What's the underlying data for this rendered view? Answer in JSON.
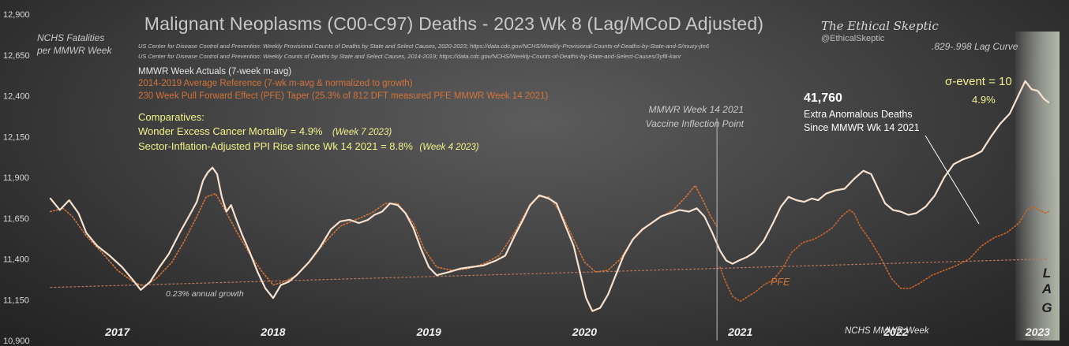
{
  "chart_data": {
    "type": "line",
    "title": "Malignant Neoplasms (C00-C97) Deaths - 2023 Wk 8 (Lag/MCoD Adjusted)",
    "ylabel": [
      "NCHS Fatalities",
      "per MMWR Week"
    ],
    "xlabel": "NCHS MMWR Week",
    "ylim": [
      10900,
      12900
    ],
    "yticks": [
      12900,
      12650,
      12400,
      12150,
      11900,
      11650,
      11400,
      11150,
      10900
    ],
    "ytick_labels": [
      "12,900",
      "12,650",
      "12,400",
      "12,150",
      "11,900",
      "11,650",
      "11,400",
      "11,150",
      "10,900"
    ],
    "xlim": [
      2016.7,
      2023.2
    ],
    "x_categories": [
      {
        "label": "2017",
        "x": 2017.15
      },
      {
        "label": "2018",
        "x": 2018.15
      },
      {
        "label": "2019",
        "x": 2019.15
      },
      {
        "label": "2020",
        "x": 2020.15
      },
      {
        "label": "2021",
        "x": 2021.15
      },
      {
        "label": "2022",
        "x": 2022.15
      },
      {
        "label": "2023",
        "x": 2023.06
      }
    ],
    "grid": false,
    "series": [
      {
        "name": "MMWR Week Actuals (7-week m-avg)",
        "color": "#f7e1cf",
        "style": "solid",
        "points": [
          [
            2016.72,
            11770
          ],
          [
            2016.78,
            11700
          ],
          [
            2016.84,
            11760
          ],
          [
            2016.9,
            11680
          ],
          [
            2016.95,
            11560
          ],
          [
            2017.02,
            11480
          ],
          [
            2017.1,
            11420
          ],
          [
            2017.18,
            11350
          ],
          [
            2017.25,
            11270
          ],
          [
            2017.3,
            11210
          ],
          [
            2017.36,
            11260
          ],
          [
            2017.42,
            11350
          ],
          [
            2017.48,
            11430
          ],
          [
            2017.55,
            11560
          ],
          [
            2017.62,
            11680
          ],
          [
            2017.66,
            11750
          ],
          [
            2017.7,
            11880
          ],
          [
            2017.73,
            11930
          ],
          [
            2017.76,
            11960
          ],
          [
            2017.79,
            11920
          ],
          [
            2017.82,
            11780
          ],
          [
            2017.85,
            11690
          ],
          [
            2017.88,
            11730
          ],
          [
            2017.91,
            11650
          ],
          [
            2017.95,
            11550
          ],
          [
            2018.0,
            11440
          ],
          [
            2018.05,
            11320
          ],
          [
            2018.1,
            11220
          ],
          [
            2018.15,
            11160
          ],
          [
            2018.2,
            11240
          ],
          [
            2018.25,
            11260
          ],
          [
            2018.3,
            11300
          ],
          [
            2018.38,
            11380
          ],
          [
            2018.45,
            11470
          ],
          [
            2018.52,
            11580
          ],
          [
            2018.58,
            11630
          ],
          [
            2018.64,
            11640
          ],
          [
            2018.7,
            11620
          ],
          [
            2018.76,
            11640
          ],
          [
            2018.8,
            11670
          ],
          [
            2018.85,
            11690
          ],
          [
            2018.9,
            11740
          ],
          [
            2018.95,
            11730
          ],
          [
            2019.0,
            11680
          ],
          [
            2019.05,
            11590
          ],
          [
            2019.1,
            11460
          ],
          [
            2019.15,
            11350
          ],
          [
            2019.2,
            11300
          ],
          [
            2019.28,
            11320
          ],
          [
            2019.35,
            11340
          ],
          [
            2019.42,
            11350
          ],
          [
            2019.5,
            11360
          ],
          [
            2019.58,
            11390
          ],
          [
            2019.64,
            11420
          ],
          [
            2019.7,
            11540
          ],
          [
            2019.76,
            11650
          ],
          [
            2019.8,
            11730
          ],
          [
            2019.86,
            11790
          ],
          [
            2019.92,
            11770
          ],
          [
            2019.97,
            11740
          ],
          [
            2020.02,
            11620
          ],
          [
            2020.08,
            11480
          ],
          [
            2020.12,
            11320
          ],
          [
            2020.16,
            11160
          ],
          [
            2020.2,
            11080
          ],
          [
            2020.25,
            11100
          ],
          [
            2020.3,
            11180
          ],
          [
            2020.35,
            11300
          ],
          [
            2020.4,
            11420
          ],
          [
            2020.46,
            11520
          ],
          [
            2020.52,
            11580
          ],
          [
            2020.58,
            11620
          ],
          [
            2020.64,
            11660
          ],
          [
            2020.7,
            11680
          ],
          [
            2020.76,
            11700
          ],
          [
            2020.82,
            11690
          ],
          [
            2020.87,
            11710
          ],
          [
            2020.92,
            11660
          ],
          [
            2020.97,
            11560
          ],
          [
            2021.02,
            11450
          ],
          [
            2021.06,
            11390
          ],
          [
            2021.1,
            11370
          ],
          [
            2021.14,
            11390
          ],
          [
            2021.19,
            11410
          ],
          [
            2021.24,
            11440
          ],
          [
            2021.3,
            11510
          ],
          [
            2021.36,
            11620
          ],
          [
            2021.41,
            11720
          ],
          [
            2021.46,
            11780
          ],
          [
            2021.51,
            11760
          ],
          [
            2021.56,
            11750
          ],
          [
            2021.61,
            11770
          ],
          [
            2021.65,
            11760
          ],
          [
            2021.7,
            11800
          ],
          [
            2021.76,
            11820
          ],
          [
            2021.82,
            11830
          ],
          [
            2021.88,
            11890
          ],
          [
            2021.94,
            11940
          ],
          [
            2021.99,
            11920
          ],
          [
            2022.04,
            11820
          ],
          [
            2022.08,
            11740
          ],
          [
            2022.13,
            11700
          ],
          [
            2022.18,
            11690
          ],
          [
            2022.23,
            11670
          ],
          [
            2022.28,
            11680
          ],
          [
            2022.34,
            11720
          ],
          [
            2022.4,
            11790
          ],
          [
            2022.46,
            11900
          ],
          [
            2022.52,
            11980
          ],
          [
            2022.58,
            12010
          ],
          [
            2022.64,
            12030
          ],
          [
            2022.7,
            12060
          ],
          [
            2022.76,
            12150
          ],
          [
            2022.82,
            12230
          ],
          [
            2022.88,
            12290
          ],
          [
            2022.94,
            12410
          ],
          [
            2022.98,
            12490
          ],
          [
            2023.02,
            12440
          ],
          [
            2023.06,
            12430
          ],
          [
            2023.1,
            12380
          ],
          [
            2023.13,
            12360
          ]
        ]
      },
      {
        "name": "2014-2019 Average Reference (7-wk m-avg & normalized to growth)",
        "color": "#d4733a",
        "style": "dotted",
        "points": [
          [
            2016.72,
            11690
          ],
          [
            2016.8,
            11710
          ],
          [
            2016.86,
            11660
          ],
          [
            2016.95,
            11540
          ],
          [
            2017.05,
            11440
          ],
          [
            2017.15,
            11330
          ],
          [
            2017.25,
            11260
          ],
          [
            2017.32,
            11230
          ],
          [
            2017.4,
            11280
          ],
          [
            2017.5,
            11380
          ],
          [
            2017.58,
            11510
          ],
          [
            2017.66,
            11660
          ],
          [
            2017.72,
            11780
          ],
          [
            2017.78,
            11800
          ],
          [
            2017.84,
            11700
          ],
          [
            2017.92,
            11560
          ],
          [
            2018.0,
            11430
          ],
          [
            2018.08,
            11320
          ],
          [
            2018.15,
            11240
          ],
          [
            2018.22,
            11260
          ],
          [
            2018.3,
            11300
          ],
          [
            2018.4,
            11400
          ],
          [
            2018.48,
            11500
          ],
          [
            2018.58,
            11600
          ],
          [
            2018.68,
            11640
          ],
          [
            2018.78,
            11680
          ],
          [
            2018.87,
            11740
          ],
          [
            2018.95,
            11740
          ],
          [
            2019.05,
            11620
          ],
          [
            2019.12,
            11460
          ],
          [
            2019.2,
            11350
          ],
          [
            2019.3,
            11330
          ],
          [
            2019.4,
            11340
          ],
          [
            2019.5,
            11370
          ],
          [
            2019.6,
            11420
          ],
          [
            2019.7,
            11560
          ],
          [
            2019.78,
            11700
          ],
          [
            2019.85,
            11780
          ],
          [
            2019.92,
            11780
          ],
          [
            2020.0,
            11680
          ],
          [
            2020.08,
            11520
          ],
          [
            2020.15,
            11380
          ],
          [
            2020.22,
            11320
          ],
          [
            2020.3,
            11330
          ],
          [
            2020.38,
            11400
          ],
          [
            2020.46,
            11520
          ],
          [
            2020.55,
            11600
          ],
          [
            2020.64,
            11660
          ],
          [
            2020.72,
            11700
          ],
          [
            2020.8,
            11780
          ],
          [
            2020.86,
            11850
          ],
          [
            2020.91,
            11760
          ],
          [
            2020.96,
            11660
          ],
          [
            2021.0,
            11600
          ]
        ]
      },
      {
        "name": "230 Week Pull Forward Effect (PFE) Taper (25.3% of 812 DFT measured PFE MMWR Week 14 2021)",
        "label": "PFE",
        "color": "#c7662c",
        "style": "dotted",
        "points": [
          [
            2021.02,
            11350
          ],
          [
            2021.06,
            11250
          ],
          [
            2021.1,
            11170
          ],
          [
            2021.15,
            11140
          ],
          [
            2021.2,
            11170
          ],
          [
            2021.25,
            11200
          ],
          [
            2021.3,
            11240
          ],
          [
            2021.36,
            11270
          ],
          [
            2021.42,
            11340
          ],
          [
            2021.48,
            11440
          ],
          [
            2021.55,
            11500
          ],
          [
            2021.62,
            11520
          ],
          [
            2021.68,
            11550
          ],
          [
            2021.74,
            11590
          ],
          [
            2021.8,
            11660
          ],
          [
            2021.85,
            11700
          ],
          [
            2021.88,
            11680
          ],
          [
            2021.92,
            11600
          ],
          [
            2021.98,
            11520
          ],
          [
            2022.05,
            11410
          ],
          [
            2022.12,
            11280
          ],
          [
            2022.18,
            11220
          ],
          [
            2022.24,
            11220
          ],
          [
            2022.3,
            11250
          ],
          [
            2022.38,
            11300
          ],
          [
            2022.46,
            11330
          ],
          [
            2022.54,
            11360
          ],
          [
            2022.62,
            11400
          ],
          [
            2022.7,
            11480
          ],
          [
            2022.78,
            11530
          ],
          [
            2022.86,
            11560
          ],
          [
            2022.94,
            11620
          ],
          [
            2022.99,
            11700
          ],
          [
            2023.03,
            11720
          ],
          [
            2023.07,
            11700
          ],
          [
            2023.11,
            11680
          ],
          [
            2023.13,
            11690
          ]
        ]
      },
      {
        "name": "trend",
        "label": "0.23% annual growth",
        "color": "#b9775a",
        "style": "dotted",
        "points": [
          [
            2016.72,
            11225
          ],
          [
            2023.13,
            11400
          ]
        ]
      }
    ],
    "annotations": {
      "vaccine_line": {
        "x": 2021.0,
        "label": [
          "MMWR Week 14 2021",
          "Vaccine Inflection Point"
        ]
      },
      "excess": {
        "value": "41,760",
        "text": [
          "Extra Anomalous Deaths",
          "Since MMWR Wk 14 2021"
        ]
      },
      "sigma": "σ-event = 10",
      "sigma_pct": "4.9%",
      "lag_curve": ".829-.998 Lag Curve",
      "lag": [
        "L",
        "A",
        "G"
      ]
    }
  },
  "sources": [
    "US Center for Disease Control and Prevention: Weekly  Provisional Counts of Deaths by State and Select Causes, 2020-2023; https://data.cdc.gov/NCHS/Weekly-Provisional-Counts-of-Deaths-by-State-and-S/muzy-jte6",
    "US Center for Disease Control and Prevention: Weekly  Counts of Deaths by State and Select Causes, 2014-2019; https://data.cdc.gov/NCHS/Weekly-Counts-of-Deaths-by-State-and-Select-Causes/3yf8-kanr"
  ],
  "comparatives": {
    "heading": "Comparatives:",
    "line1": "Wonder  Excess Cancer Mortality =  4.9%",
    "line1_note": "(Week 7 2023)",
    "line2": "Sector-Inflation-Adjusted  PPI Rise since Wk 14 2021 = 8.8%",
    "line2_note": "(Week 4 2023)"
  },
  "brand": {
    "name": "The Ethical Skeptic",
    "handle": "@EthicalSkeptic"
  },
  "colors": {
    "actual": "#f7e1cf",
    "reference": "#d4733a",
    "comparative": "#f2f28a",
    "lag_band": "#dfe6d4"
  }
}
